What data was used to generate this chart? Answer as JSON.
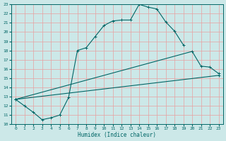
{
  "xlabel": "Humidex (Indice chaleur)",
  "bg_color": "#cce8e8",
  "grid_color": "#e8a0a0",
  "line_color": "#006666",
  "line1_x": [
    0,
    1,
    2,
    3,
    4,
    5,
    6,
    7,
    8,
    9,
    10,
    11,
    12,
    13,
    14,
    15,
    16,
    17,
    18,
    19
  ],
  "line1_y": [
    12.7,
    12.0,
    11.3,
    10.5,
    10.7,
    11.0,
    12.9,
    18.0,
    18.3,
    19.5,
    20.7,
    21.2,
    21.3,
    21.3,
    23.0,
    22.7,
    22.5,
    21.1,
    20.1,
    18.6
  ],
  "line2_x": [
    0,
    20,
    21,
    22,
    23
  ],
  "line2_y": [
    12.7,
    17.9,
    16.3,
    16.2,
    15.5
  ],
  "line3_x": [
    0,
    23
  ],
  "line3_y": [
    12.7,
    15.3
  ],
  "ylim": [
    10,
    23
  ],
  "xlim": [
    -0.5,
    23.5
  ],
  "yticks": [
    10,
    11,
    12,
    13,
    14,
    15,
    16,
    17,
    18,
    19,
    20,
    21,
    22,
    23
  ],
  "xticks": [
    0,
    1,
    2,
    3,
    4,
    5,
    6,
    7,
    8,
    9,
    10,
    11,
    12,
    13,
    14,
    15,
    16,
    17,
    18,
    19,
    20,
    21,
    22,
    23
  ]
}
